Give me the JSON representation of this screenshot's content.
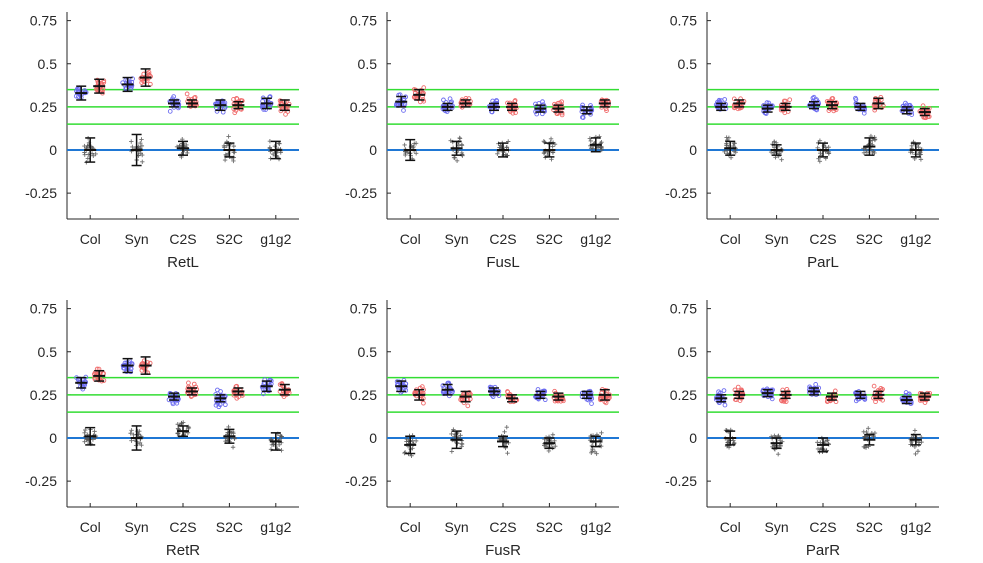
{
  "figure": {
    "y_tick_labels": [
      "0.75",
      "0.5",
      "0.25",
      "0",
      "-0.25"
    ],
    "colors": {
      "zero_line": "#1f77d4",
      "reference_lines": "#33dd33",
      "group_a_points": "#6b6bf0",
      "group_b_points": "#f06b6b",
      "null_points": "#555555",
      "mean_bars": "#111111"
    }
  },
  "chart_data": [
    {
      "type": "scatter",
      "title": "RetL",
      "categories": [
        "Col",
        "Syn",
        "C2S",
        "S2C",
        "g1g2"
      ],
      "ylim": [
        -0.4,
        0.8
      ],
      "yticks": [
        -0.25,
        0,
        0.25,
        0.5,
        0.75
      ],
      "reference_lines": [
        0,
        0.15,
        0.25,
        0.35
      ],
      "series": [
        {
          "values": [
            0.33,
            0.38,
            0.27,
            0.26,
            0.27
          ],
          "errors": [
            0.04,
            0.04,
            0.02,
            0.03,
            0.03
          ]
        },
        {
          "values": [
            0.37,
            0.42,
            0.27,
            0.26,
            0.26
          ],
          "errors": [
            0.04,
            0.05,
            0.02,
            0.02,
            0.03
          ]
        },
        {
          "values": [
            0.0,
            0.0,
            0.01,
            0.0,
            0.0
          ],
          "errors": [
            0.07,
            0.09,
            0.04,
            0.04,
            0.05
          ]
        }
      ]
    },
    {
      "type": "scatter",
      "title": "FusL",
      "categories": [
        "Col",
        "Syn",
        "C2S",
        "S2C",
        "g1g2"
      ],
      "ylim": [
        -0.4,
        0.8
      ],
      "yticks": [
        -0.25,
        0,
        0.25,
        0.5,
        0.75
      ],
      "reference_lines": [
        0,
        0.15,
        0.25,
        0.35
      ],
      "series": [
        {
          "values": [
            0.28,
            0.25,
            0.25,
            0.24,
            0.23
          ],
          "errors": [
            0.03,
            0.02,
            0.02,
            0.02,
            0.02
          ]
        },
        {
          "values": [
            0.32,
            0.27,
            0.25,
            0.24,
            0.27
          ],
          "errors": [
            0.03,
            0.02,
            0.02,
            0.02,
            0.02
          ]
        },
        {
          "values": [
            0.0,
            0.01,
            0.0,
            0.0,
            0.03
          ],
          "errors": [
            0.06,
            0.04,
            0.04,
            0.04,
            0.04
          ]
        }
      ]
    },
    {
      "type": "scatter",
      "title": "ParL",
      "categories": [
        "Col",
        "Syn",
        "C2S",
        "S2C",
        "g1g2"
      ],
      "ylim": [
        -0.4,
        0.8
      ],
      "yticks": [
        -0.25,
        0,
        0.25,
        0.5,
        0.75
      ],
      "reference_lines": [
        0,
        0.15,
        0.25,
        0.35
      ],
      "series": [
        {
          "values": [
            0.25,
            0.24,
            0.26,
            0.25,
            0.23
          ],
          "errors": [
            0.02,
            0.02,
            0.02,
            0.02,
            0.02
          ]
        },
        {
          "values": [
            0.27,
            0.25,
            0.26,
            0.27,
            0.22
          ],
          "errors": [
            0.02,
            0.02,
            0.02,
            0.03,
            0.02
          ]
        },
        {
          "values": [
            0.01,
            0.0,
            0.0,
            0.02,
            0.0
          ],
          "errors": [
            0.04,
            0.03,
            0.04,
            0.05,
            0.04
          ]
        }
      ]
    },
    {
      "type": "scatter",
      "title": "RetR",
      "categories": [
        "Col",
        "Syn",
        "C2S",
        "S2C",
        "g1g2"
      ],
      "ylim": [
        -0.4,
        0.8
      ],
      "yticks": [
        -0.25,
        0,
        0.25,
        0.5,
        0.75
      ],
      "reference_lines": [
        0,
        0.15,
        0.25,
        0.35
      ],
      "series": [
        {
          "values": [
            0.32,
            0.42,
            0.24,
            0.23,
            0.3
          ],
          "errors": [
            0.03,
            0.04,
            0.02,
            0.02,
            0.03
          ]
        },
        {
          "values": [
            0.36,
            0.42,
            0.27,
            0.27,
            0.28
          ],
          "errors": [
            0.03,
            0.05,
            0.02,
            0.02,
            0.03
          ]
        },
        {
          "values": [
            0.01,
            0.0,
            0.04,
            0.01,
            -0.02
          ],
          "errors": [
            0.05,
            0.07,
            0.03,
            0.04,
            0.05
          ]
        }
      ]
    },
    {
      "type": "scatter",
      "title": "FusR",
      "categories": [
        "Col",
        "Syn",
        "C2S",
        "S2C",
        "g1g2"
      ],
      "ylim": [
        -0.4,
        0.8
      ],
      "yticks": [
        -0.25,
        0,
        0.25,
        0.5,
        0.75
      ],
      "reference_lines": [
        0,
        0.15,
        0.25,
        0.35
      ],
      "series": [
        {
          "values": [
            0.3,
            0.28,
            0.27,
            0.25,
            0.25
          ],
          "errors": [
            0.03,
            0.03,
            0.02,
            0.02,
            0.02
          ]
        },
        {
          "values": [
            0.25,
            0.24,
            0.23,
            0.24,
            0.25
          ],
          "errors": [
            0.03,
            0.03,
            0.02,
            0.02,
            0.03
          ]
        },
        {
          "values": [
            -0.04,
            -0.01,
            -0.02,
            -0.03,
            -0.02
          ],
          "errors": [
            0.05,
            0.05,
            0.03,
            0.03,
            0.03
          ]
        }
      ]
    },
    {
      "type": "scatter",
      "title": "ParR",
      "categories": [
        "Col",
        "Syn",
        "C2S",
        "S2C",
        "g1g2"
      ],
      "ylim": [
        -0.4,
        0.8
      ],
      "yticks": [
        -0.25,
        0,
        0.25,
        0.5,
        0.75
      ],
      "reference_lines": [
        0,
        0.15,
        0.25,
        0.35
      ],
      "series": [
        {
          "values": [
            0.23,
            0.26,
            0.27,
            0.25,
            0.22
          ],
          "errors": [
            0.02,
            0.02,
            0.02,
            0.02,
            0.02
          ]
        },
        {
          "values": [
            0.25,
            0.25,
            0.24,
            0.25,
            0.24
          ],
          "errors": [
            0.02,
            0.02,
            0.02,
            0.02,
            0.02
          ]
        },
        {
          "values": [
            0.0,
            -0.03,
            -0.04,
            -0.01,
            -0.01
          ],
          "errors": [
            0.04,
            0.03,
            0.04,
            0.03,
            0.03
          ]
        }
      ]
    }
  ]
}
